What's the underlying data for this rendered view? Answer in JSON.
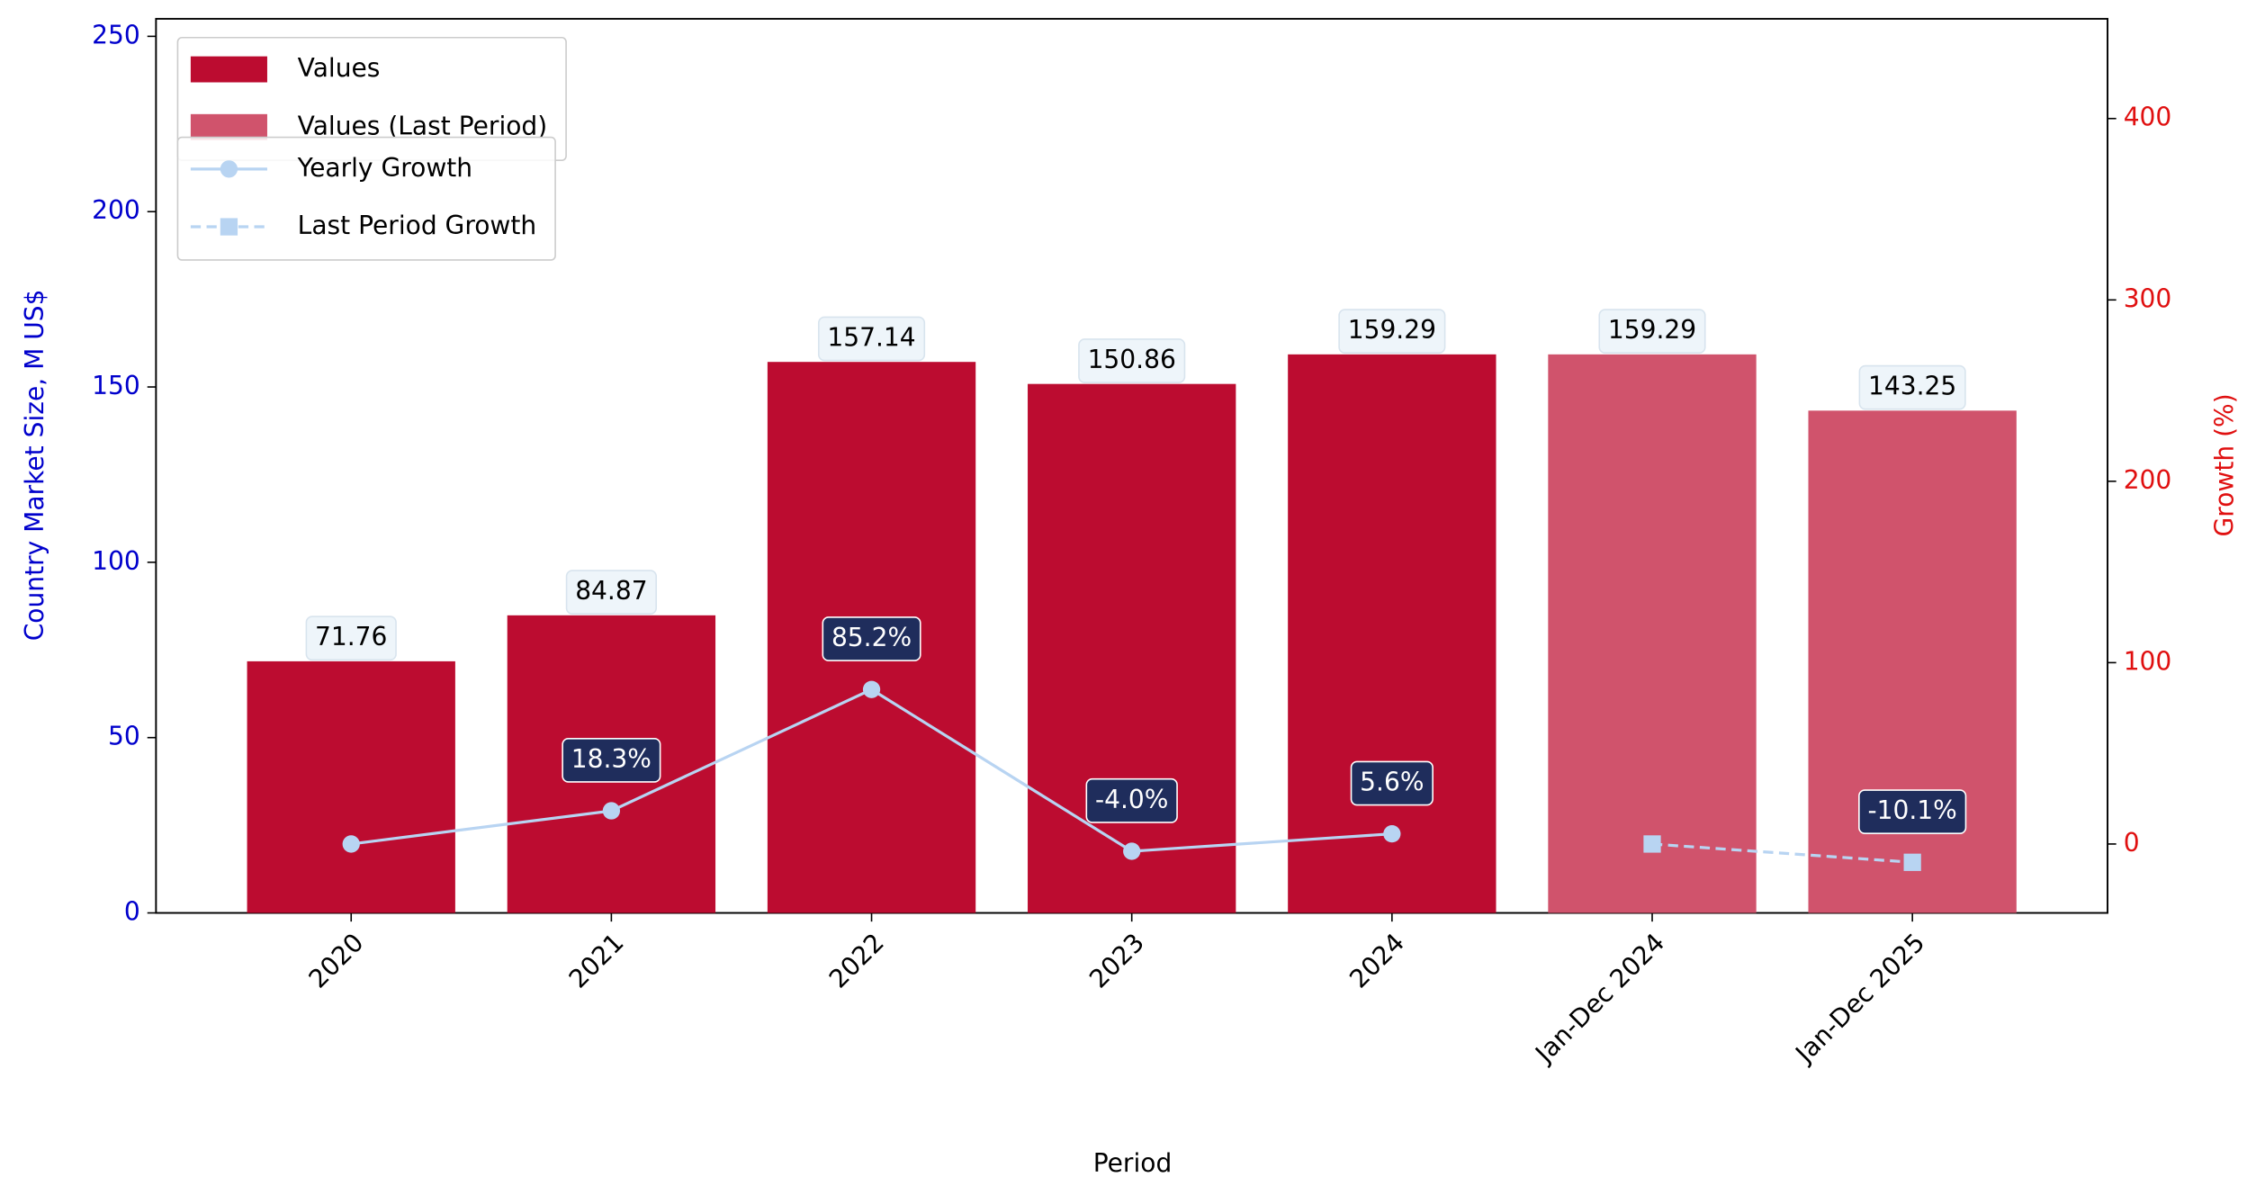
{
  "chart_data": {
    "type": "bar",
    "x_label": "Period",
    "y_label": "Country Market Size, M US$",
    "y2_label": "Growth (%)",
    "categories": [
      "2020",
      "2021",
      "2022",
      "2023",
      "2024",
      "Jan-Dec 2024",
      "Jan-Dec 2025"
    ],
    "series": [
      {
        "name": "Values",
        "type": "bar",
        "color": "#bc0c30",
        "values": [
          71.76,
          84.87,
          157.14,
          150.86,
          159.29,
          null,
          null
        ]
      },
      {
        "name": "Values (Last Period)",
        "type": "bar",
        "color": "#d0536c",
        "values": [
          null,
          null,
          null,
          null,
          null,
          159.29,
          143.25
        ]
      },
      {
        "name": "Yearly Growth",
        "type": "line",
        "axis": "y2",
        "color": "#b8d4f2",
        "line_style": "solid",
        "marker": "circle",
        "values": [
          0,
          18.3,
          85.2,
          -4.0,
          5.6,
          null,
          null
        ],
        "value_labels": [
          null,
          "18.3%",
          "85.2%",
          "-4.0%",
          "5.6%",
          null,
          null
        ]
      },
      {
        "name": "Last Period Growth",
        "type": "line",
        "axis": "y2",
        "color": "#b8d4f2",
        "line_style": "dashed",
        "marker": "square",
        "values": [
          null,
          null,
          null,
          null,
          null,
          0,
          -10.1
        ],
        "value_labels": [
          null,
          null,
          null,
          null,
          null,
          null,
          "-10.1%"
        ]
      }
    ],
    "ylim": [
      0,
      255
    ],
    "yticks": [
      0,
      50,
      100,
      150,
      200,
      250
    ],
    "y2lim": [
      -38,
      455
    ],
    "y2ticks": [
      0,
      100,
      200,
      300,
      400
    ],
    "y_color": "#0000cc",
    "y2_color": "#e01010",
    "legend": "upper left"
  }
}
